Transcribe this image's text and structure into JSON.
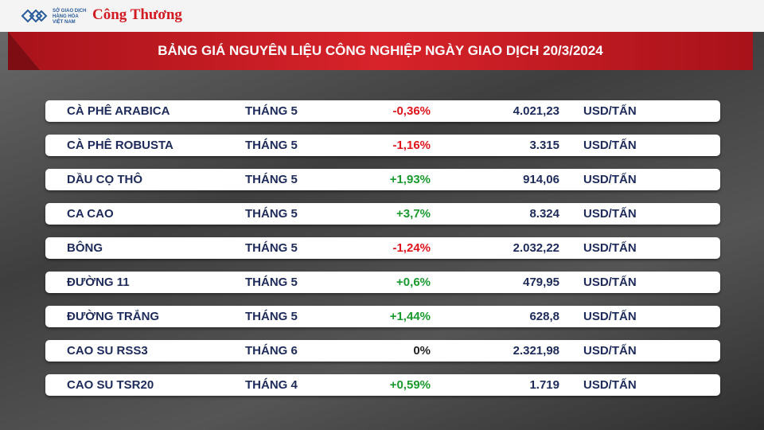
{
  "header": {
    "logo_org_line1": "SỞ GIAO DỊCH",
    "logo_org_line2": "HÀNG HÓA",
    "logo_org_line3": "VIỆT NAM",
    "logo_brand": "Công Thương"
  },
  "title": "BẢNG GIÁ NGUYÊN LIỆU CÔNG NGHIỆP NGÀY GIAO DỊCH 20/3/2024",
  "table": {
    "rows": [
      [
        "CÀ PHÊ ARABICA",
        "THÁNG 5",
        "-0,36%",
        "4.021,23",
        "USD/TẤN"
      ],
      [
        "CÀ PHÊ ROBUSTA",
        "THÁNG 5",
        "-1,16%",
        "3.315",
        "USD/TẤN"
      ],
      [
        "DẦU CỌ THÔ",
        "THÁNG 5",
        "+1,93%",
        "914,06",
        "USD/TẤN"
      ],
      [
        "CA CAO",
        "THÁNG 5",
        "+3,7%",
        "8.324",
        "USD/TẤN"
      ],
      [
        "BÔNG",
        "THÁNG 5",
        "-1,24%",
        "2.032,22",
        "USD/TẤN"
      ],
      [
        "ĐƯỜNG 11",
        "THÁNG 5",
        "+0,6%",
        "479,95",
        "USD/TẤN"
      ],
      [
        "ĐƯỜNG TRẮNG",
        "THÁNG 5",
        "+1,44%",
        "628,8",
        "USD/TẤN"
      ],
      [
        "CAO SU RSS3",
        "THÁNG 6",
        "0%",
        "2.321,98",
        "USD/TẤN"
      ],
      [
        "CAO SU TSR20",
        "THÁNG 4",
        "+0,59%",
        "1.719",
        "USD/TẤN"
      ]
    ],
    "change_colors": [
      "#e0141b",
      "#e0141b",
      "#1a9a2e",
      "#1a9a2e",
      "#e0141b",
      "#1a9a2e",
      "#1a9a2e",
      "#222222",
      "#1a9a2e"
    ]
  }
}
